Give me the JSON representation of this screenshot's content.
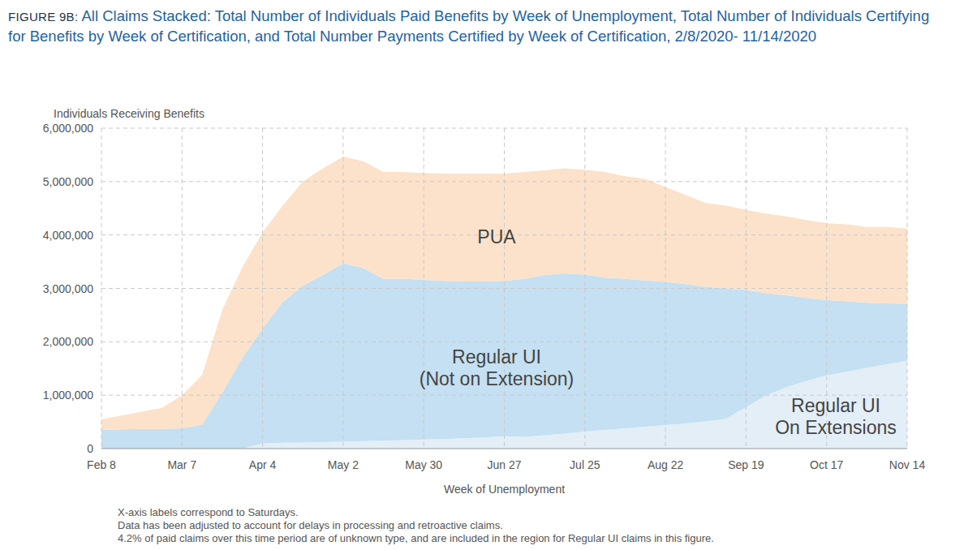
{
  "chart_data": {
    "type": "area",
    "stacked": true,
    "grid": true,
    "title": "FIGURE 9B: All Claims Stacked: Total Number of Individuals Paid Benefits by Week of Unemployment, Total Number of Individuals Certifying for Benefits by Week of Certification, and Total Number Payments Certified by Week of Certification, 2/8/2020- 11/14/2020",
    "y_label": "Individuals Receiving Benefits",
    "x_label": "Week of Unemployment",
    "annotations": [
      "X-axis labels correspond to Saturdays.",
      "Data has been adjusted to account for delays in processing and retroactive claims.",
      "4.2% of paid claims over this time period are of unknown type, and are included in the region for Regular UI claims in this figure."
    ],
    "categories": [
      "Feb 8",
      null,
      null,
      null,
      "Mar 7",
      null,
      null,
      null,
      "Apr 4",
      null,
      null,
      null,
      "May 2",
      null,
      null,
      null,
      "May 30",
      null,
      null,
      null,
      "Jun 27",
      null,
      null,
      null,
      "Jul 25",
      null,
      null,
      null,
      "Aug 22",
      null,
      null,
      null,
      "Sep 19",
      null,
      null,
      null,
      "Oct 17",
      null,
      null,
      null,
      "Nov 14"
    ],
    "ylim": [
      0,
      6000000
    ],
    "yticks": [
      0,
      {
        "value": 1000000,
        "label": "1,000,000"
      },
      {
        "value": 2000000,
        "label": "2,000,000"
      },
      {
        "value": 3000000,
        "label": "3,000,000"
      },
      {
        "value": 4000000,
        "label": "4,000,000"
      },
      {
        "value": 5000000,
        "label": "5,000,000"
      },
      {
        "value": 6000000,
        "label": "6,000,000"
      }
    ],
    "series": [
      {
        "name": "Regular UI\nOn Extensions",
        "color": "#e3eef7",
        "values": [
          0,
          0,
          0,
          0,
          0,
          0,
          0,
          0,
          100000,
          110000,
          115000,
          120000,
          130000,
          140000,
          150000,
          160000,
          170000,
          180000,
          195000,
          210000,
          230000,
          220000,
          250000,
          280000,
          320000,
          350000,
          380000,
          410000,
          440000,
          470000,
          510000,
          560000,
          780000,
          1000000,
          1150000,
          1270000,
          1370000,
          1440000,
          1510000,
          1580000,
          1650000
        ]
      },
      {
        "name": "Regular UI\n(Not on Extension)",
        "color": "#c4e0f2",
        "values": [
          350000,
          360000,
          370000,
          370000,
          380000,
          450000,
          1050000,
          1700000,
          2150000,
          2640000,
          2935000,
          3130000,
          3340000,
          3240000,
          3030000,
          3020000,
          2990000,
          2960000,
          2935000,
          2920000,
          2910000,
          2960000,
          3000000,
          3000000,
          2940000,
          2850000,
          2800000,
          2740000,
          2680000,
          2610000,
          2520000,
          2440000,
          2190000,
          1910000,
          1720000,
          1550000,
          1410000,
          1320000,
          1220000,
          1140000,
          1060000
        ]
      },
      {
        "name": "PUA",
        "color": "#fce2ca",
        "values": [
          200000,
          260000,
          320000,
          390000,
          620000,
          930000,
          1550000,
          1700000,
          1800000,
          1800000,
          1950000,
          2000000,
          2000000,
          2000000,
          2000000,
          2000000,
          2000000,
          2010000,
          2020000,
          2020000,
          2010000,
          2000000,
          1960000,
          1970000,
          1960000,
          1980000,
          1920000,
          1900000,
          1780000,
          1670000,
          1570000,
          1550000,
          1500000,
          1490000,
          1480000,
          1460000,
          1440000,
          1440000,
          1420000,
          1430000,
          1410000
        ]
      }
    ]
  }
}
